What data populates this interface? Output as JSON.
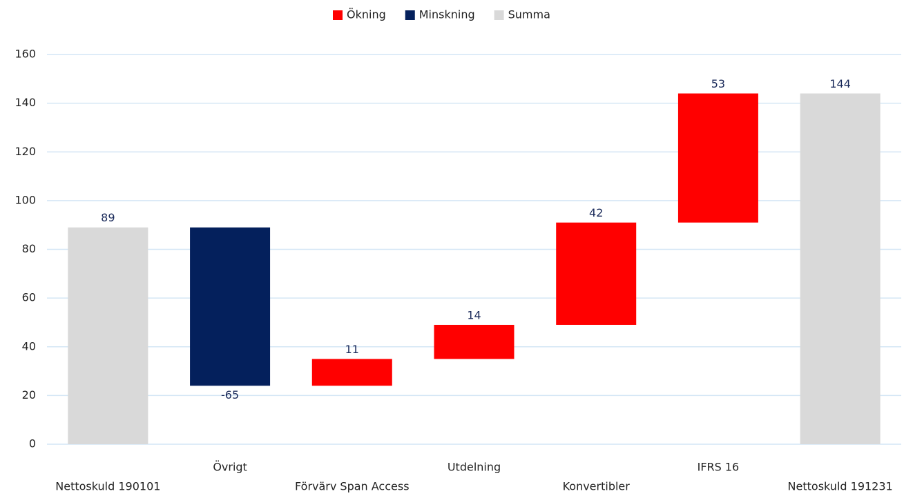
{
  "chart_data": {
    "type": "waterfall",
    "categories": [
      "Nettoskuld 190101",
      "Övrigt",
      "Förvärv Span Access",
      "Utdelning",
      "Konvertibler",
      "IFRS 16",
      "Nettoskuld 191231"
    ],
    "series": [
      {
        "name": "Ökning",
        "color": "#ff0000",
        "values": [
          null,
          null,
          11,
          14,
          42,
          53,
          null
        ]
      },
      {
        "name": "Minskning",
        "color": "#04205c",
        "values": [
          null,
          -65,
          null,
          null,
          null,
          null,
          null
        ]
      },
      {
        "name": "Summa",
        "color": "#d9d9d9",
        "values": [
          89,
          null,
          null,
          null,
          null,
          null,
          144
        ]
      }
    ],
    "ylim": [
      0,
      160
    ],
    "yticks": [
      0,
      20,
      40,
      60,
      80,
      100,
      120,
      140,
      160
    ],
    "grid": true,
    "legend": "top"
  }
}
